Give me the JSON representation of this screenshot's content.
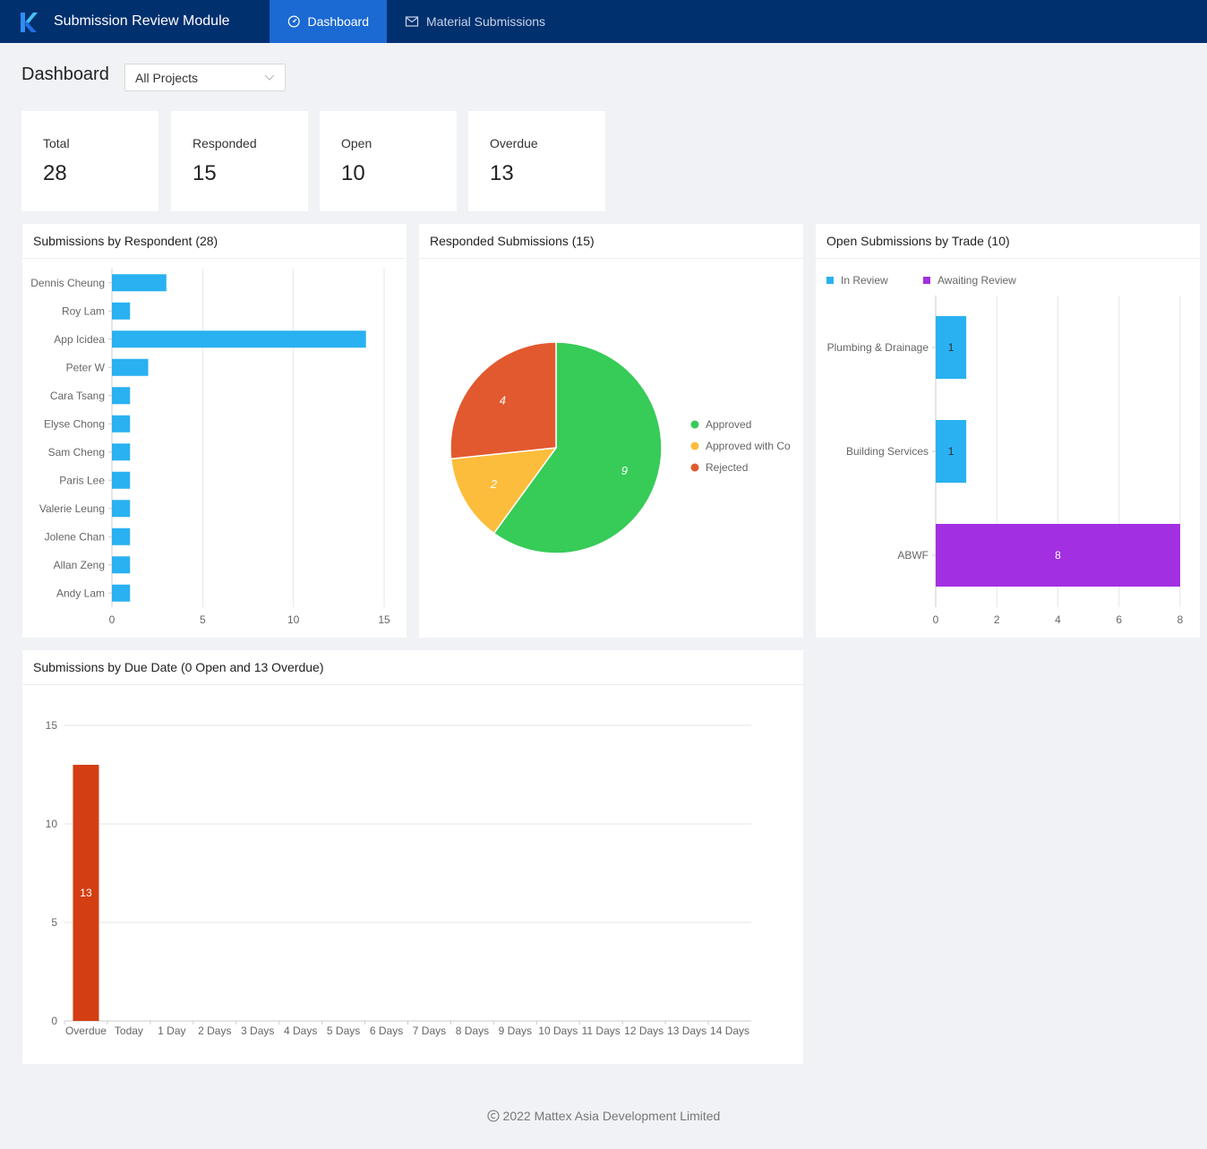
{
  "app": {
    "title": "Submission Review Module",
    "nav": [
      {
        "label": "Dashboard",
        "icon": "dashboard-icon",
        "active": true
      },
      {
        "label": "Material Submissions",
        "icon": "mail-icon",
        "active": false
      }
    ]
  },
  "page": {
    "title": "Dashboard",
    "project_filter": {
      "value": "All Projects"
    }
  },
  "stats": [
    {
      "label": "Total",
      "value": "28"
    },
    {
      "label": "Responded",
      "value": "15"
    },
    {
      "label": "Open",
      "value": "10"
    },
    {
      "label": "Overdue",
      "value": "13"
    }
  ],
  "panels": {
    "respondent": {
      "title": "Submissions by Respondent (28)"
    },
    "responded": {
      "title": "Responded Submissions (15)"
    },
    "trade": {
      "title": "Open Submissions by Trade (10)"
    },
    "due_date": {
      "title": "Submissions by Due Date (0 Open and 13 Overdue)"
    }
  },
  "colors": {
    "brand": "#01306f",
    "nav_active": "#1b69d2",
    "bar_blue": "#29b1f1",
    "approved": "#37cb58",
    "approved_with_comments": "#fdbd3c",
    "rejected": "#e2592f",
    "awaiting": "#a22fe2",
    "overdue": "#d33e12"
  },
  "chart_data": [
    {
      "type": "bar",
      "orientation": "horizontal",
      "categories": [
        "Dennis Cheung",
        "Roy Lam",
        "App Icidea",
        "Peter W",
        "Cara Tsang",
        "Elyse Chong",
        "Sam Cheng",
        "Paris Lee",
        "Valerie Leung",
        "Jolene Chan",
        "Allan Zeng",
        "Andy Lam"
      ],
      "values": [
        3,
        1,
        14,
        2,
        1,
        1,
        1,
        1,
        1,
        1,
        1,
        1
      ],
      "xticks": [
        "0",
        "5",
        "10",
        "15"
      ],
      "xlim": [
        0,
        15
      ],
      "grid": true
    },
    {
      "type": "pie",
      "labels": [
        "Approved",
        "Approved with Comments",
        "Rejected"
      ],
      "legend_labels": [
        "Approved",
        "Approved with Co",
        "Rejected"
      ],
      "values": [
        9,
        2,
        4
      ],
      "slice_labels": [
        "9",
        "2",
        "4"
      ],
      "legend": "right"
    },
    {
      "type": "bar",
      "orientation": "horizontal",
      "stacked": true,
      "categories": [
        "Plumbing & Drainage",
        "Building Services",
        "ABWF"
      ],
      "series": [
        {
          "name": "In Review",
          "values": [
            1,
            1,
            0
          ],
          "labels": [
            "1",
            "1",
            ""
          ]
        },
        {
          "name": "Awaiting Review",
          "values": [
            0,
            0,
            8
          ],
          "labels": [
            "",
            "",
            "8"
          ]
        }
      ],
      "xticks": [
        "0",
        "2",
        "4",
        "6",
        "8"
      ],
      "xlim": [
        0,
        8
      ],
      "legend": "top-left",
      "grid": true
    },
    {
      "type": "bar",
      "categories": [
        "Overdue",
        "Today",
        "1 Day",
        "2 Days",
        "3 Days",
        "4 Days",
        "5 Days",
        "6 Days",
        "7 Days",
        "8 Days",
        "9 Days",
        "10 Days",
        "11 Days",
        "12 Days",
        "13 Days",
        "14 Days"
      ],
      "values": [
        13,
        0,
        0,
        0,
        0,
        0,
        0,
        0,
        0,
        0,
        0,
        0,
        0,
        0,
        0,
        0
      ],
      "bar_labels": [
        "13"
      ],
      "yticks": [
        "0",
        "5",
        "10",
        "15"
      ],
      "ylim": [
        0,
        15
      ],
      "grid": true
    }
  ],
  "footer": {
    "text": "2022 Mattex Asia Development Limited"
  }
}
